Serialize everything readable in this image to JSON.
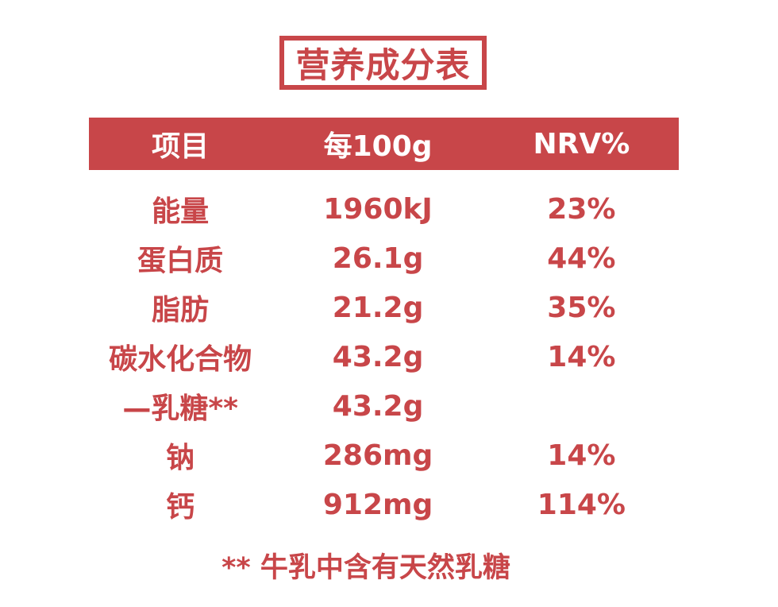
{
  "colors": {
    "accent": "#C84649",
    "header_text": "#ffffff",
    "background": "#ffffff"
  },
  "title": {
    "text": "营养成分表"
  },
  "table": {
    "headers": [
      {
        "label": "项目"
      },
      {
        "label": "每100g"
      },
      {
        "label": "NRV%"
      }
    ],
    "rows": [
      {
        "item": "能量",
        "per100g": "1960kJ",
        "nrv": "23%"
      },
      {
        "item": "蛋白质",
        "per100g": "26.1g",
        "nrv": "44%"
      },
      {
        "item": "脂肪",
        "per100g": "21.2g",
        "nrv": "35%"
      },
      {
        "item": "碳水化合物",
        "per100g": "43.2g",
        "nrv": "14%"
      },
      {
        "item": "—乳糖**",
        "per100g": "43.2g",
        "nrv": ""
      },
      {
        "item": "钠",
        "per100g": "286mg",
        "nrv": "14%"
      },
      {
        "item": "钙",
        "per100g": "912mg",
        "nrv": "114%"
      }
    ]
  },
  "footnote": {
    "text": "** 牛乳中含有天然乳糖"
  }
}
